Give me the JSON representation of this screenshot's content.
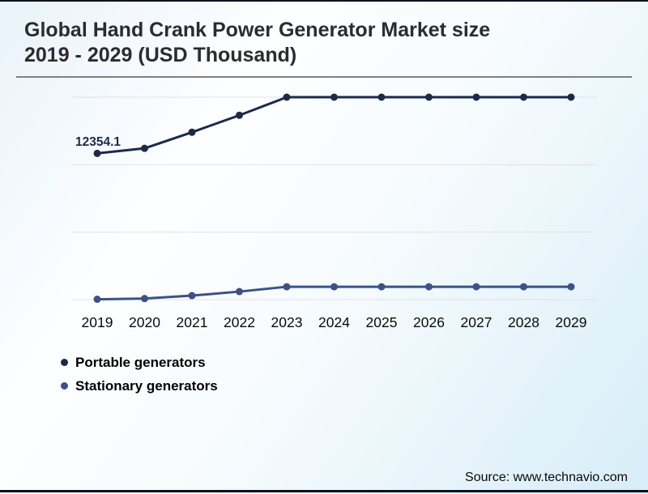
{
  "header": {
    "title_line1": "Global Hand Crank Power Generator Market size",
    "title_line2": "2019 - 2029 (USD Thousand)"
  },
  "chart_data": {
    "type": "line",
    "categories": [
      "2019",
      "2020",
      "2021",
      "2022",
      "2023",
      "2024",
      "2025",
      "2026",
      "2027",
      "2028",
      "2029"
    ],
    "series": [
      {
        "name": "Portable generators",
        "color": "#1b2a4a",
        "values": [
          12354.1,
          12780,
          14140,
          15570,
          17100,
          17100,
          17100,
          17100,
          17100,
          17100,
          17100
        ]
      },
      {
        "name": "Stationary generators",
        "color": "#3c5285",
        "values": [
          30,
          90,
          340,
          680,
          1090,
          1090,
          1090,
          1090,
          1090,
          1090,
          1090
        ]
      }
    ],
    "data_label": {
      "series": "Portable generators",
      "category": "2019",
      "text": "12354.1"
    },
    "title": "Global Hand Crank Power Generator Market size 2019 - 2029 (USD Thousand)",
    "xlabel": "",
    "ylabel": "",
    "ylim": [
      0,
      17100
    ],
    "gridline_count": 4,
    "grid": "horizontal only, no y-axis tick labels",
    "legend_position": "bottom-left",
    "gridline_color": "#e2e2e2"
  },
  "footer": {
    "source": "Source: www.technavio.com"
  },
  "accents": {
    "top_bottom_bar_color": "#0c1220",
    "title_rule_color": "#7f7f7f"
  }
}
